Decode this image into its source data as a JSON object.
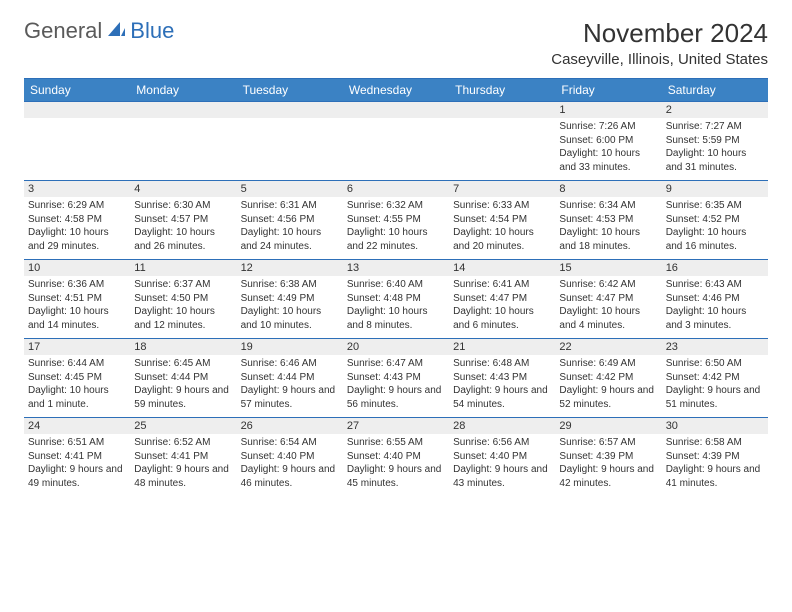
{
  "brand": {
    "part1": "General",
    "part2": "Blue"
  },
  "title": "November 2024",
  "location": "Caseyville, Illinois, United States",
  "colors": {
    "header_bg": "#3b82c4",
    "header_text": "#ffffff",
    "daynum_bg": "#eeeeee",
    "border": "#2d6fb8",
    "text": "#333333",
    "logo_gray": "#5a5a5a",
    "logo_blue": "#2d6fb8"
  },
  "dayNames": [
    "Sunday",
    "Monday",
    "Tuesday",
    "Wednesday",
    "Thursday",
    "Friday",
    "Saturday"
  ],
  "weeks": [
    [
      null,
      null,
      null,
      null,
      null,
      {
        "n": "1",
        "sunrise": "7:26 AM",
        "sunset": "6:00 PM",
        "daylight": "10 hours and 33 minutes."
      },
      {
        "n": "2",
        "sunrise": "7:27 AM",
        "sunset": "5:59 PM",
        "daylight": "10 hours and 31 minutes."
      }
    ],
    [
      {
        "n": "3",
        "sunrise": "6:29 AM",
        "sunset": "4:58 PM",
        "daylight": "10 hours and 29 minutes."
      },
      {
        "n": "4",
        "sunrise": "6:30 AM",
        "sunset": "4:57 PM",
        "daylight": "10 hours and 26 minutes."
      },
      {
        "n": "5",
        "sunrise": "6:31 AM",
        "sunset": "4:56 PM",
        "daylight": "10 hours and 24 minutes."
      },
      {
        "n": "6",
        "sunrise": "6:32 AM",
        "sunset": "4:55 PM",
        "daylight": "10 hours and 22 minutes."
      },
      {
        "n": "7",
        "sunrise": "6:33 AM",
        "sunset": "4:54 PM",
        "daylight": "10 hours and 20 minutes."
      },
      {
        "n": "8",
        "sunrise": "6:34 AM",
        "sunset": "4:53 PM",
        "daylight": "10 hours and 18 minutes."
      },
      {
        "n": "9",
        "sunrise": "6:35 AM",
        "sunset": "4:52 PM",
        "daylight": "10 hours and 16 minutes."
      }
    ],
    [
      {
        "n": "10",
        "sunrise": "6:36 AM",
        "sunset": "4:51 PM",
        "daylight": "10 hours and 14 minutes."
      },
      {
        "n": "11",
        "sunrise": "6:37 AM",
        "sunset": "4:50 PM",
        "daylight": "10 hours and 12 minutes."
      },
      {
        "n": "12",
        "sunrise": "6:38 AM",
        "sunset": "4:49 PM",
        "daylight": "10 hours and 10 minutes."
      },
      {
        "n": "13",
        "sunrise": "6:40 AM",
        "sunset": "4:48 PM",
        "daylight": "10 hours and 8 minutes."
      },
      {
        "n": "14",
        "sunrise": "6:41 AM",
        "sunset": "4:47 PM",
        "daylight": "10 hours and 6 minutes."
      },
      {
        "n": "15",
        "sunrise": "6:42 AM",
        "sunset": "4:47 PM",
        "daylight": "10 hours and 4 minutes."
      },
      {
        "n": "16",
        "sunrise": "6:43 AM",
        "sunset": "4:46 PM",
        "daylight": "10 hours and 3 minutes."
      }
    ],
    [
      {
        "n": "17",
        "sunrise": "6:44 AM",
        "sunset": "4:45 PM",
        "daylight": "10 hours and 1 minute."
      },
      {
        "n": "18",
        "sunrise": "6:45 AM",
        "sunset": "4:44 PM",
        "daylight": "9 hours and 59 minutes."
      },
      {
        "n": "19",
        "sunrise": "6:46 AM",
        "sunset": "4:44 PM",
        "daylight": "9 hours and 57 minutes."
      },
      {
        "n": "20",
        "sunrise": "6:47 AM",
        "sunset": "4:43 PM",
        "daylight": "9 hours and 56 minutes."
      },
      {
        "n": "21",
        "sunrise": "6:48 AM",
        "sunset": "4:43 PM",
        "daylight": "9 hours and 54 minutes."
      },
      {
        "n": "22",
        "sunrise": "6:49 AM",
        "sunset": "4:42 PM",
        "daylight": "9 hours and 52 minutes."
      },
      {
        "n": "23",
        "sunrise": "6:50 AM",
        "sunset": "4:42 PM",
        "daylight": "9 hours and 51 minutes."
      }
    ],
    [
      {
        "n": "24",
        "sunrise": "6:51 AM",
        "sunset": "4:41 PM",
        "daylight": "9 hours and 49 minutes."
      },
      {
        "n": "25",
        "sunrise": "6:52 AM",
        "sunset": "4:41 PM",
        "daylight": "9 hours and 48 minutes."
      },
      {
        "n": "26",
        "sunrise": "6:54 AM",
        "sunset": "4:40 PM",
        "daylight": "9 hours and 46 minutes."
      },
      {
        "n": "27",
        "sunrise": "6:55 AM",
        "sunset": "4:40 PM",
        "daylight": "9 hours and 45 minutes."
      },
      {
        "n": "28",
        "sunrise": "6:56 AM",
        "sunset": "4:40 PM",
        "daylight": "9 hours and 43 minutes."
      },
      {
        "n": "29",
        "sunrise": "6:57 AM",
        "sunset": "4:39 PM",
        "daylight": "9 hours and 42 minutes."
      },
      {
        "n": "30",
        "sunrise": "6:58 AM",
        "sunset": "4:39 PM",
        "daylight": "9 hours and 41 minutes."
      }
    ]
  ],
  "labels": {
    "sunrise": "Sunrise: ",
    "sunset": "Sunset: ",
    "daylight": "Daylight: "
  }
}
